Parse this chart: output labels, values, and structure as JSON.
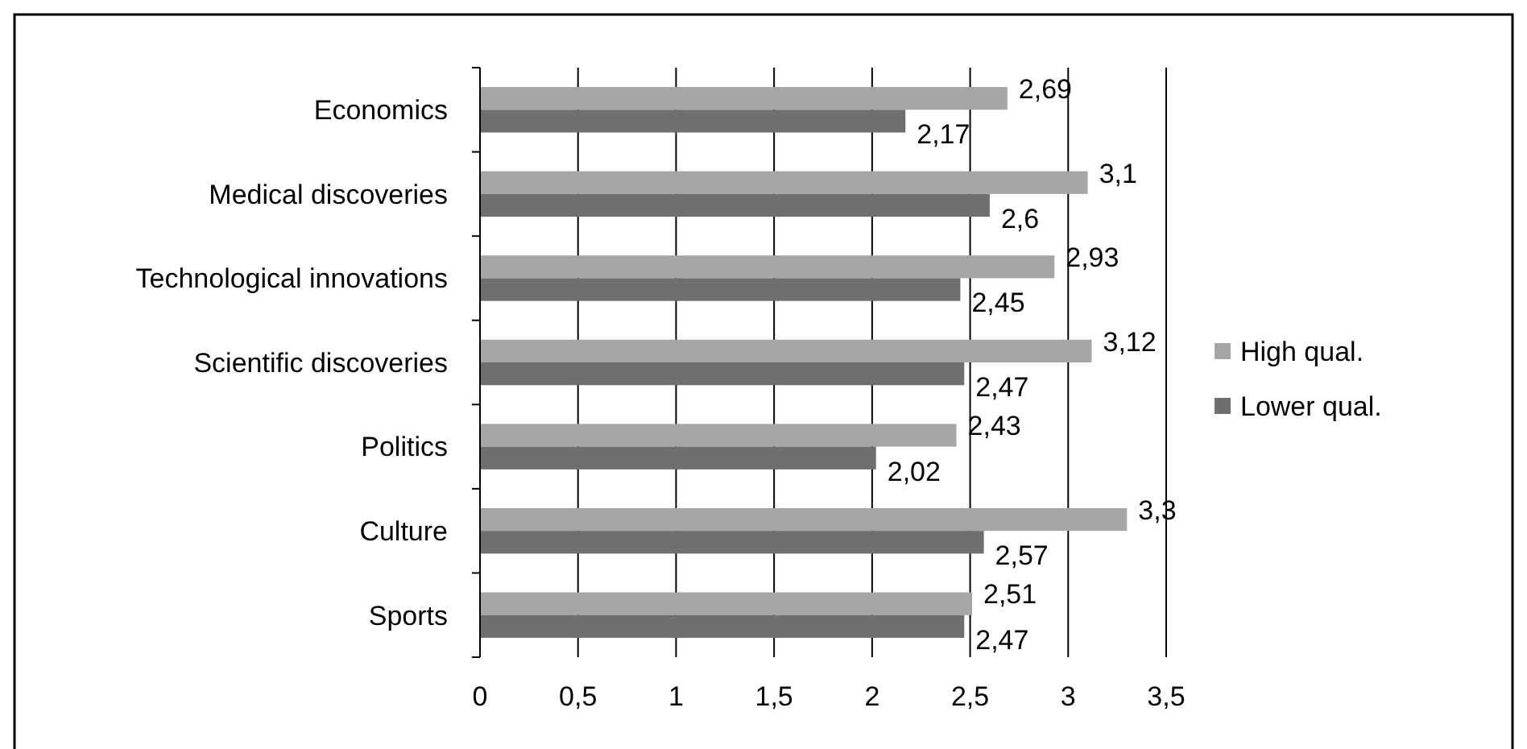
{
  "chart_data": {
    "type": "bar",
    "orientation": "horizontal",
    "categories": [
      "Economics",
      "Medical discoveries",
      "Technological innovations",
      "Scientific discoveries",
      "Politics",
      "Culture",
      "Sports"
    ],
    "series": [
      {
        "name": "High qual.",
        "color": "#a6a6a6",
        "values": [
          2.69,
          3.1,
          2.93,
          3.12,
          2.43,
          3.3,
          2.51
        ],
        "value_labels": [
          "2,69",
          "3,1",
          "2,93",
          "3,12",
          "2,43",
          "3,3",
          "2,51"
        ]
      },
      {
        "name": "Lower qual.",
        "color": "#6f6f6f",
        "values": [
          2.17,
          2.6,
          2.45,
          2.47,
          2.02,
          2.57,
          2.47
        ],
        "value_labels": [
          "2,17",
          "2,6",
          "2,45",
          "2,47",
          "2,02",
          "2,57",
          "2,47"
        ]
      }
    ],
    "xlim": [
      0,
      3.5
    ],
    "xticks": [
      0,
      {
        "value": 0.5,
        "label": "0,5"
      },
      1,
      {
        "value": 1.5,
        "label": "1,5"
      },
      2,
      {
        "value": 2.5,
        "label": "2,5"
      },
      3,
      {
        "value": 3.5,
        "label": "3,5"
      }
    ],
    "grid": "x",
    "legend": "right"
  }
}
